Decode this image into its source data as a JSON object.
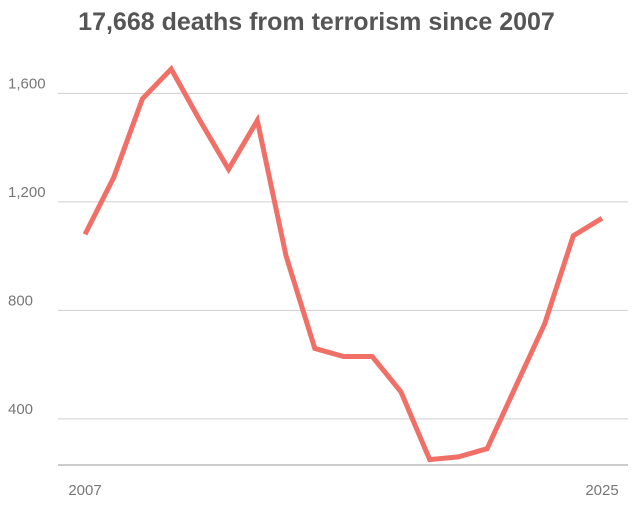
{
  "chart_data": {
    "type": "line",
    "title": "17,668 deaths from terrorism since 2007",
    "xlabel": "",
    "ylabel": "",
    "x": [
      2007,
      2008,
      2009,
      2010,
      2011,
      2012,
      2013,
      2014,
      2015,
      2016,
      2017,
      2018,
      2019,
      2020,
      2021,
      2022,
      2023,
      2024,
      2025
    ],
    "x_tick_labels": [
      "2007",
      "2025"
    ],
    "y_ticks": [
      400,
      800,
      1200,
      1600
    ],
    "y_tick_labels": [
      "400",
      "800",
      "1,200",
      "1,600"
    ],
    "ylim": [
      230,
      1760
    ],
    "xlim": [
      2007,
      2025
    ],
    "grid": true,
    "legend": "none",
    "series": [
      {
        "color": "#f07067",
        "values": [
          1080,
          1290,
          1580,
          1690,
          1500,
          1320,
          1500,
          1000,
          660,
          630,
          630,
          500,
          250,
          260,
          290,
          520,
          750,
          1075,
          1140
        ]
      }
    ]
  }
}
